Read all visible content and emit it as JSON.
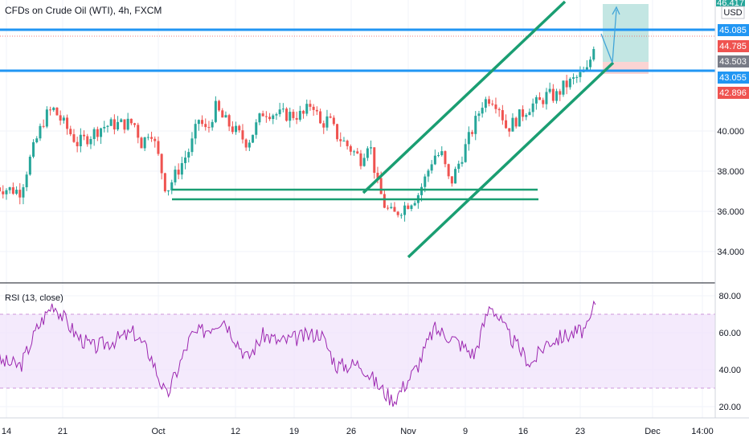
{
  "header": {
    "title": "CFDs on Crude Oil (WTI), 4h, FXCM",
    "currency": "USD"
  },
  "colors": {
    "up": "#26a69a",
    "down": "#ef5350",
    "channel": "#1a9e72",
    "level": "#2196f3",
    "rsi": "#9c27b0",
    "rsi_band": "#efe1fb"
  },
  "chart_data": [
    {
      "type": "candlestick",
      "title": "CFDs on Crude Oil (WTI), 4h, FXCM",
      "y_unit": "USD",
      "ylim": [
        32.8,
        46.7
      ],
      "y_ticks": [
        34.0,
        36.0,
        38.0,
        40.0
      ],
      "x_tick_labels": [
        "14",
        "21",
        "Oct",
        "12",
        "19",
        "26",
        "Nov",
        "9",
        "16",
        "23",
        "Dec",
        "14:00"
      ],
      "price_labels": {
        "top_partial": "46.417",
        "resistance": "45.085",
        "last": "44.785",
        "entry": "43.503",
        "support": "43.055",
        "stop": "42.896"
      },
      "horizontal_levels": [
        45.085,
        43.055
      ],
      "close_path": [
        [
          "2020-09-11",
          37.2
        ],
        [
          "2020-09-14",
          37.0
        ],
        [
          "2020-09-15",
          38.4
        ],
        [
          "2020-09-16",
          39.6
        ],
        [
          "2020-09-17",
          40.7
        ],
        [
          "2020-09-18",
          41.1
        ],
        [
          "2020-09-21",
          39.4
        ],
        [
          "2020-09-22",
          39.6
        ],
        [
          "2020-09-23",
          39.9
        ],
        [
          "2020-09-24",
          40.2
        ],
        [
          "2020-09-25",
          40.3
        ],
        [
          "2020-09-28",
          40.4
        ],
        [
          "2020-09-29",
          39.3
        ],
        [
          "2020-09-30",
          40.2
        ],
        [
          "2020-10-01",
          38.7
        ],
        [
          "2020-10-02",
          37.0
        ],
        [
          "2020-10-05",
          39.2
        ],
        [
          "2020-10-06",
          40.6
        ],
        [
          "2020-10-07",
          39.9
        ],
        [
          "2020-10-08",
          41.2
        ],
        [
          "2020-10-09",
          40.6
        ],
        [
          "2020-10-12",
          39.4
        ],
        [
          "2020-10-13",
          40.2
        ],
        [
          "2020-10-14",
          41.0
        ],
        [
          "2020-10-15",
          40.9
        ],
        [
          "2020-10-16",
          40.8
        ],
        [
          "2020-10-19",
          40.8
        ],
        [
          "2020-10-20",
          41.5
        ],
        [
          "2020-10-21",
          40.3
        ],
        [
          "2020-10-22",
          40.6
        ],
        [
          "2020-10-23",
          39.8
        ],
        [
          "2020-10-26",
          38.6
        ],
        [
          "2020-10-27",
          39.6
        ],
        [
          "2020-10-28",
          37.4
        ],
        [
          "2020-10-29",
          36.2
        ],
        [
          "2020-10-30",
          35.8
        ],
        [
          "2020-11-02",
          36.8
        ],
        [
          "2020-11-03",
          37.7
        ],
        [
          "2020-11-04",
          38.8
        ],
        [
          "2020-11-05",
          38.8
        ],
        [
          "2020-11-06",
          37.3
        ],
        [
          "2020-11-09",
          40.3
        ],
        [
          "2020-11-10",
          41.4
        ],
        [
          "2020-11-11",
          41.7
        ],
        [
          "2020-11-12",
          41.3
        ],
        [
          "2020-11-13",
          40.1
        ],
        [
          "2020-11-16",
          41.3
        ],
        [
          "2020-11-17",
          41.4
        ],
        [
          "2020-11-18",
          41.8
        ],
        [
          "2020-11-19",
          41.7
        ],
        [
          "2020-11-20",
          42.2
        ],
        [
          "2020-11-23",
          43.0
        ],
        [
          "2020-11-24",
          44.8
        ]
      ],
      "annotations": [
        {
          "kind": "ascending-channel",
          "lower": [
            [
              "2020-10-30",
              33.7
            ],
            [
              "2020-11-25",
              43.6
            ]
          ],
          "upper": [
            [
              "2020-10-26",
              36.9
            ],
            [
              "2020-11-24",
              46.7
            ]
          ]
        },
        {
          "kind": "horizontal-segment",
          "from": "2020-10-02",
          "to": "2020-11-17",
          "y": 37.0
        },
        {
          "kind": "horizontal-segment",
          "from": "2020-10-02",
          "to": "2020-11-17",
          "y": 36.6
        },
        {
          "kind": "long-position",
          "entry": 43.503,
          "target": 46.4,
          "stop": 42.9
        }
      ]
    },
    {
      "type": "line",
      "title": "RSI (13, close)",
      "ylim": [
        15,
        84
      ],
      "y_ticks": [
        20.0,
        40.0,
        60.0,
        80.0
      ],
      "band": [
        30,
        70
      ],
      "series": [
        {
          "x": [
            "2020-09-11",
            "2020-09-14",
            "2020-09-16",
            "2020-09-18",
            "2020-09-21",
            "2020-09-23",
            "2020-09-25",
            "2020-09-28",
            "2020-09-30",
            "2020-10-02",
            "2020-10-05",
            "2020-10-07",
            "2020-10-09",
            "2020-10-12",
            "2020-10-14",
            "2020-10-16",
            "2020-10-19",
            "2020-10-21",
            "2020-10-23",
            "2020-10-26",
            "2020-10-28",
            "2020-10-30",
            "2020-11-02",
            "2020-11-04",
            "2020-11-06",
            "2020-11-09",
            "2020-11-11",
            "2020-11-13",
            "2020-11-16",
            "2020-11-18",
            "2020-11-20",
            "2020-11-23",
            "2020-11-24"
          ],
          "values": [
            45,
            42,
            62,
            76,
            58,
            52,
            55,
            60,
            48,
            25,
            58,
            62,
            68,
            46,
            59,
            55,
            58,
            60,
            42,
            43,
            32,
            23,
            42,
            62,
            58,
            48,
            76,
            60,
            43,
            55,
            58,
            62,
            78
          ]
        }
      ]
    }
  ]
}
